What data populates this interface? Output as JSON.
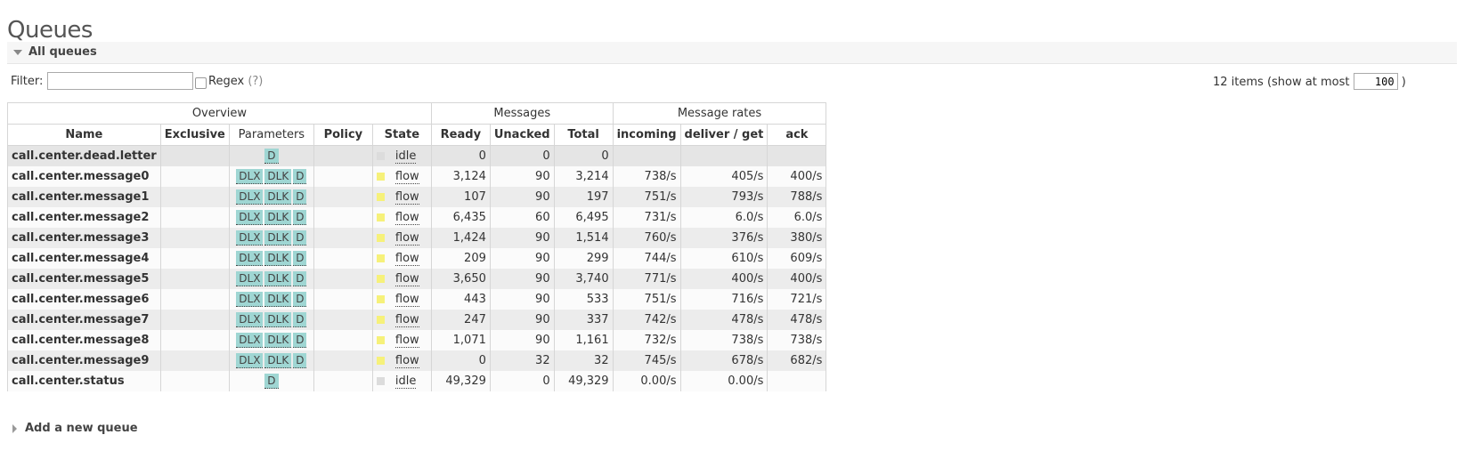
{
  "page": {
    "title": "Queues"
  },
  "section": {
    "label": "All queues"
  },
  "filter": {
    "label": "Filter:",
    "value": "",
    "regex_label": "Regex",
    "help": "(?)"
  },
  "items": {
    "prefix": "12 items (show at most",
    "max": "100",
    "suffix": ")"
  },
  "table": {
    "groups": {
      "overview": "Overview",
      "messages": "Messages",
      "rates": "Message rates"
    },
    "headers": {
      "name": "Name",
      "exclusive": "Exclusive",
      "parameters": "Parameters",
      "policy": "Policy",
      "state": "State",
      "ready": "Ready",
      "unacked": "Unacked",
      "total": "Total",
      "incoming": "incoming",
      "deliver_get": "deliver / get",
      "ack": "ack"
    },
    "rows": [
      {
        "name": "call.center.dead.letter",
        "exclusive": "",
        "params": [
          "D"
        ],
        "policy": "",
        "state": "idle",
        "ready": "0",
        "unacked": "0",
        "total": "0",
        "incoming": "",
        "deliver": "",
        "ack": ""
      },
      {
        "name": "call.center.message0",
        "exclusive": "",
        "params": [
          "DLX",
          "DLK",
          "D"
        ],
        "policy": "",
        "state": "flow",
        "ready": "3,124",
        "unacked": "90",
        "total": "3,214",
        "incoming": "738/s",
        "deliver": "405/s",
        "ack": "400/s"
      },
      {
        "name": "call.center.message1",
        "exclusive": "",
        "params": [
          "DLX",
          "DLK",
          "D"
        ],
        "policy": "",
        "state": "flow",
        "ready": "107",
        "unacked": "90",
        "total": "197",
        "incoming": "751/s",
        "deliver": "793/s",
        "ack": "788/s"
      },
      {
        "name": "call.center.message2",
        "exclusive": "",
        "params": [
          "DLX",
          "DLK",
          "D"
        ],
        "policy": "",
        "state": "flow",
        "ready": "6,435",
        "unacked": "60",
        "total": "6,495",
        "incoming": "731/s",
        "deliver": "6.0/s",
        "ack": "6.0/s"
      },
      {
        "name": "call.center.message3",
        "exclusive": "",
        "params": [
          "DLX",
          "DLK",
          "D"
        ],
        "policy": "",
        "state": "flow",
        "ready": "1,424",
        "unacked": "90",
        "total": "1,514",
        "incoming": "760/s",
        "deliver": "376/s",
        "ack": "380/s"
      },
      {
        "name": "call.center.message4",
        "exclusive": "",
        "params": [
          "DLX",
          "DLK",
          "D"
        ],
        "policy": "",
        "state": "flow",
        "ready": "209",
        "unacked": "90",
        "total": "299",
        "incoming": "744/s",
        "deliver": "610/s",
        "ack": "609/s"
      },
      {
        "name": "call.center.message5",
        "exclusive": "",
        "params": [
          "DLX",
          "DLK",
          "D"
        ],
        "policy": "",
        "state": "flow",
        "ready": "3,650",
        "unacked": "90",
        "total": "3,740",
        "incoming": "771/s",
        "deliver": "400/s",
        "ack": "400/s"
      },
      {
        "name": "call.center.message6",
        "exclusive": "",
        "params": [
          "DLX",
          "DLK",
          "D"
        ],
        "policy": "",
        "state": "flow",
        "ready": "443",
        "unacked": "90",
        "total": "533",
        "incoming": "751/s",
        "deliver": "716/s",
        "ack": "721/s"
      },
      {
        "name": "call.center.message7",
        "exclusive": "",
        "params": [
          "DLX",
          "DLK",
          "D"
        ],
        "policy": "",
        "state": "flow",
        "ready": "247",
        "unacked": "90",
        "total": "337",
        "incoming": "742/s",
        "deliver": "478/s",
        "ack": "478/s"
      },
      {
        "name": "call.center.message8",
        "exclusive": "",
        "params": [
          "DLX",
          "DLK",
          "D"
        ],
        "policy": "",
        "state": "flow",
        "ready": "1,071",
        "unacked": "90",
        "total": "1,161",
        "incoming": "732/s",
        "deliver": "738/s",
        "ack": "738/s"
      },
      {
        "name": "call.center.message9",
        "exclusive": "",
        "params": [
          "DLX",
          "DLK",
          "D"
        ],
        "policy": "",
        "state": "flow",
        "ready": "0",
        "unacked": "32",
        "total": "32",
        "incoming": "745/s",
        "deliver": "678/s",
        "ack": "682/s"
      },
      {
        "name": "call.center.status",
        "exclusive": "",
        "params": [
          "D"
        ],
        "policy": "",
        "state": "idle",
        "ready": "49,329",
        "unacked": "0",
        "total": "49,329",
        "incoming": "0.00/s",
        "deliver": "0.00/s",
        "ack": ""
      }
    ]
  },
  "add_queue": {
    "label": "Add a new queue"
  },
  "colors": {
    "param_tag": "#9fd6d3",
    "flow_state": "#f6f17a",
    "idle_state": "#dcdcdc"
  }
}
